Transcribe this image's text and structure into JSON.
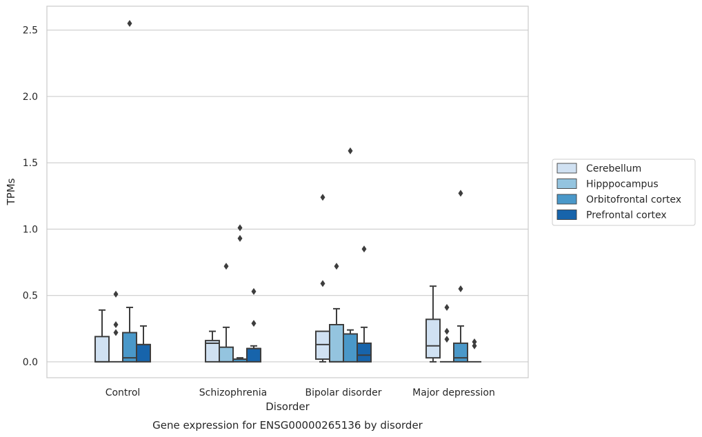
{
  "chart_data": {
    "type": "boxplot",
    "caption": "Gene expression for ENSG00000265136 by disorder",
    "xlabel": "Disorder",
    "ylabel": "TPMs",
    "ylim": [
      -0.12,
      2.68
    ],
    "yticks": [
      "0.0",
      "0.5",
      "1.0",
      "1.5",
      "2.0",
      "2.5"
    ],
    "grid": "horizontal",
    "legend_position": "right",
    "categories": [
      "Control",
      "Schizophrenia",
      "Bipolar disorder",
      "Major depression"
    ],
    "series": [
      {
        "name": "Cerebellum",
        "color": "#d0e1f2",
        "boxes": [
          {
            "whislo": 0.0,
            "q1": 0.0,
            "med": 0.0,
            "q3": 0.19,
            "whishi": 0.39,
            "fliers": []
          },
          {
            "whislo": 0.0,
            "q1": 0.0,
            "med": 0.14,
            "q3": 0.16,
            "whishi": 0.23,
            "fliers": []
          },
          {
            "whislo": 0.0,
            "q1": 0.02,
            "med": 0.13,
            "q3": 0.23,
            "whishi": 0.23,
            "fliers": [
              0.59,
              1.24
            ]
          },
          {
            "whislo": 0.0,
            "q1": 0.03,
            "med": 0.12,
            "q3": 0.32,
            "whishi": 0.57,
            "fliers": []
          }
        ]
      },
      {
        "name": "Hipppocampus",
        "color": "#94c4df",
        "boxes": [
          {
            "whislo": 0.0,
            "q1": 0.0,
            "med": 0.0,
            "q3": 0.0,
            "whishi": 0.0,
            "fliers": [
              0.22,
              0.28,
              0.51
            ]
          },
          {
            "whislo": 0.0,
            "q1": 0.0,
            "med": 0.0,
            "q3": 0.11,
            "whishi": 0.26,
            "fliers": [
              0.72
            ]
          },
          {
            "whislo": 0.0,
            "q1": 0.0,
            "med": 0.0,
            "q3": 0.28,
            "whishi": 0.4,
            "fliers": [
              0.72
            ]
          },
          {
            "whislo": 0.0,
            "q1": 0.0,
            "med": 0.0,
            "q3": 0.0,
            "whishi": 0.0,
            "fliers": [
              0.17,
              0.23,
              0.41
            ]
          }
        ]
      },
      {
        "name": "Orbitofrontal cortex",
        "color": "#4a98c9",
        "boxes": [
          {
            "whislo": 0.0,
            "q1": 0.0,
            "med": 0.03,
            "q3": 0.22,
            "whishi": 0.41,
            "fliers": [
              2.55
            ]
          },
          {
            "whislo": 0.0,
            "q1": 0.0,
            "med": 0.02,
            "q3": 0.02,
            "whishi": 0.03,
            "fliers": [
              0.93,
              1.01
            ]
          },
          {
            "whislo": 0.0,
            "q1": 0.0,
            "med": 0.21,
            "q3": 0.21,
            "whishi": 0.24,
            "fliers": [
              1.59
            ]
          },
          {
            "whislo": 0.0,
            "q1": 0.0,
            "med": 0.03,
            "q3": 0.14,
            "whishi": 0.27,
            "fliers": [
              0.55,
              1.27
            ]
          }
        ]
      },
      {
        "name": "Prefrontal cortex",
        "color": "#1764ab",
        "boxes": [
          {
            "whislo": 0.0,
            "q1": 0.0,
            "med": 0.13,
            "q3": 0.13,
            "whishi": 0.27,
            "fliers": []
          },
          {
            "whislo": 0.0,
            "q1": 0.0,
            "med": 0.1,
            "q3": 0.1,
            "whishi": 0.12,
            "fliers": [
              0.29,
              0.53
            ]
          },
          {
            "whislo": 0.0,
            "q1": 0.0,
            "med": 0.05,
            "q3": 0.14,
            "whishi": 0.26,
            "fliers": [
              0.85
            ]
          },
          {
            "whislo": 0.0,
            "q1": 0.0,
            "med": 0.0,
            "q3": 0.0,
            "whishi": 0.0,
            "fliers": [
              0.12,
              0.15
            ]
          }
        ]
      }
    ]
  }
}
